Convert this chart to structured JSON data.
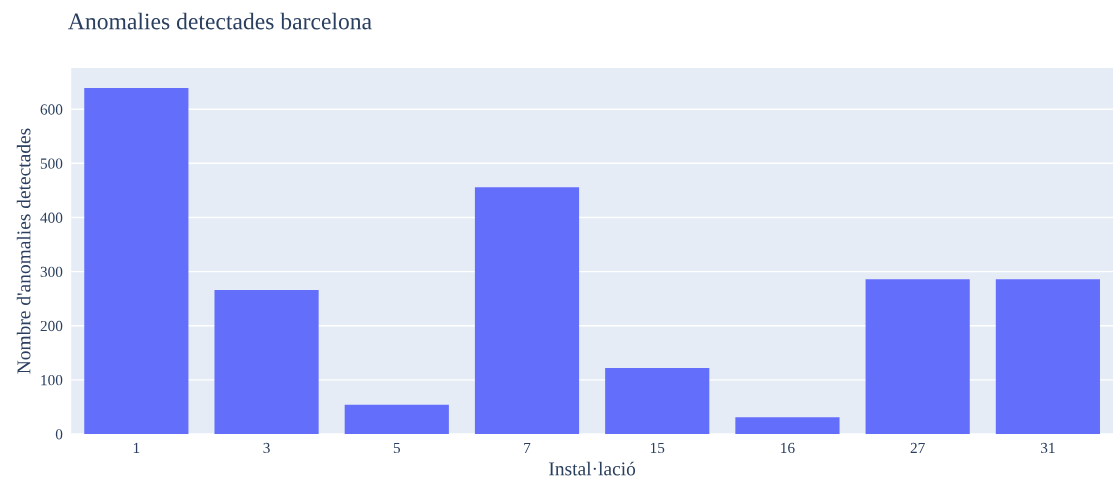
{
  "chart_data": {
    "type": "bar",
    "title": "Anomalies detectades barcelona",
    "xlabel": "Instal·lació",
    "ylabel": "Nombre d'anomalies detectades",
    "categories": [
      "1",
      "3",
      "5",
      "7",
      "15",
      "16",
      "27",
      "31"
    ],
    "values": [
      639,
      266,
      54,
      456,
      122,
      31,
      286,
      286
    ],
    "color": "#636efa",
    "ylim": [
      0,
      676
    ],
    "yticks": [
      0,
      100,
      200,
      300,
      400,
      500,
      600
    ],
    "grid": "y",
    "legend": false
  }
}
